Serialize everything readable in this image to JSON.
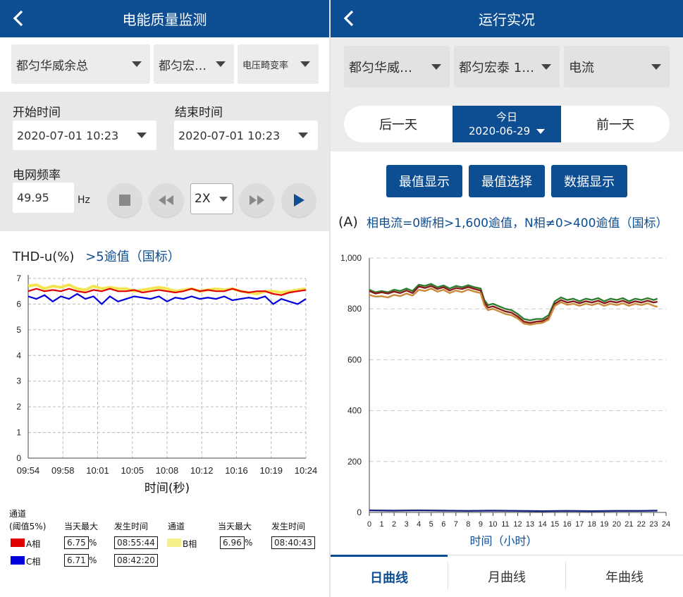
{
  "left": {
    "title": "电能质量监测",
    "selects": [
      "都匀华威余总",
      "都匀宏…",
      "电压畸变率"
    ],
    "start_label": "开始时间",
    "end_label": "结束时间",
    "start_value": "2020-07-01 10:23",
    "end_value": "2020-07-01 10:23",
    "freq_label": "电网频率",
    "freq_value": "49.95",
    "freq_unit": "Hz",
    "speed": "2X",
    "chart_title": "THD-u(%)",
    "chart_threshold": ">5逾值（国标）",
    "legend": {
      "channel_header": "通道",
      "threshold_header": "(阈值5%)",
      "max_header": "当天最大",
      "time_header": "发生时间",
      "channel_header2": "通道",
      "max_header2": "当天最大",
      "time_header2": "发生时间",
      "a": {
        "label": "A相",
        "max": "6.75",
        "unit": "%",
        "time": "08:55:44"
      },
      "b": {
        "label": "B相",
        "max": "6.96",
        "unit": "%",
        "time": "08:40:43"
      },
      "c": {
        "label": "C相",
        "max": "6.71",
        "unit": "%",
        "time": "08:42:20"
      }
    },
    "chart_data": {
      "type": "line",
      "xlabel": "时间(秒)",
      "x_ticks": [
        "09:54",
        "09:58",
        "10:01",
        "10:05",
        "10:08",
        "10:12",
        "10:16",
        "10:19",
        "10:24"
      ],
      "y_ticks": [
        "0",
        "1",
        "2",
        "3",
        "4",
        "5",
        "6",
        "7"
      ],
      "ylim": [
        0,
        7
      ],
      "series": [
        {
          "name": "A相",
          "color": "#e00000",
          "values": [
            6.5,
            6.6,
            6.5,
            6.55,
            6.5,
            6.6,
            6.5,
            6.45,
            6.55,
            6.5,
            6.6,
            6.5,
            6.5,
            6.55,
            6.45,
            6.5,
            6.55,
            6.5,
            6.45,
            6.5,
            6.6,
            6.5,
            6.55,
            6.5,
            6.5,
            6.6,
            6.5,
            6.45,
            6.5,
            6.5,
            6.4,
            6.35,
            6.45,
            6.5,
            6.55
          ]
        },
        {
          "name": "B相",
          "color": "#f4e450",
          "values": [
            6.7,
            6.75,
            6.6,
            6.7,
            6.65,
            6.75,
            6.6,
            6.55,
            6.7,
            6.6,
            6.65,
            6.6,
            6.6,
            6.5,
            6.55,
            6.6,
            6.65,
            6.6,
            6.5,
            6.55,
            6.6,
            6.5,
            6.55,
            6.6,
            6.55,
            6.6,
            6.5,
            6.45,
            6.4,
            6.5,
            6.5,
            6.45,
            6.5,
            6.55,
            6.6
          ]
        },
        {
          "name": "C相",
          "color": "#0000dd",
          "values": [
            6.3,
            6.2,
            6.35,
            6.1,
            6.3,
            6.2,
            6.4,
            6.2,
            6.3,
            6.0,
            6.3,
            6.1,
            6.2,
            6.3,
            6.25,
            6.2,
            6.3,
            6.1,
            6.25,
            6.2,
            6.3,
            6.2,
            6.25,
            6.2,
            6.3,
            6.15,
            6.2,
            6.25,
            6.2,
            6.3,
            6.0,
            6.2,
            6.1,
            6.0,
            6.2
          ]
        }
      ]
    }
  },
  "right": {
    "title": "运行实况",
    "selects": [
      "都匀华威…",
      "都匀宏泰 1…",
      "电流"
    ],
    "date_prev": "后一天",
    "date_today": "今日",
    "date_value": "2020-06-29",
    "date_next": "前一天",
    "buttons": [
      "最值显示",
      "最值选择",
      "数据显示"
    ],
    "unit": "(A)",
    "note": "相电流=0断相>1,600逾值，N相≠0>400逾值（国标）",
    "tabs": [
      "日曲线",
      "月曲线",
      "年曲线"
    ],
    "chart_data": {
      "type": "line",
      "xlabel": "时间（小时）",
      "x_ticks": [
        "0",
        "1",
        "2",
        "3",
        "4",
        "5",
        "6",
        "7",
        "8",
        "9",
        "10",
        "11",
        "12",
        "13",
        "14",
        "15",
        "16",
        "17",
        "18",
        "19",
        "20",
        "21",
        "22",
        "23",
        "24"
      ],
      "y_ticks": [
        "0",
        "200",
        "400",
        "600",
        "800",
        "1,000"
      ],
      "xlim": [
        0,
        24
      ],
      "ylim": [
        0,
        1000
      ],
      "series": [
        {
          "color": "#2e7d2e",
          "x": [
            0,
            0.5,
            1,
            1.5,
            2,
            2.5,
            3,
            3.5,
            4,
            4.5,
            5,
            5.5,
            6,
            6.5,
            7,
            7.5,
            8,
            8.5,
            9,
            9.3,
            9.6,
            10,
            10.5,
            11,
            11.5,
            12,
            12.5,
            13,
            13.5,
            14,
            14.5,
            15,
            15.5,
            16,
            16.5,
            17,
            17.5,
            18,
            18.5,
            19,
            19.5,
            20,
            20.5,
            21,
            21.5,
            22,
            22.5,
            23,
            23.3
          ],
          "y": [
            875,
            865,
            870,
            865,
            875,
            870,
            880,
            870,
            895,
            890,
            898,
            885,
            892,
            880,
            890,
            885,
            893,
            885,
            880,
            835,
            815,
            820,
            810,
            800,
            795,
            780,
            760,
            755,
            760,
            760,
            775,
            830,
            845,
            835,
            840,
            830,
            840,
            835,
            842,
            830,
            840,
            835,
            842,
            830,
            840,
            835,
            842,
            835,
            840
          ]
        },
        {
          "color": "#8b1a1a",
          "x": [
            0,
            0.5,
            1,
            1.5,
            2,
            2.5,
            3,
            3.5,
            4,
            4.5,
            5,
            5.5,
            6,
            6.5,
            7,
            7.5,
            8,
            8.5,
            9,
            9.3,
            9.6,
            10,
            10.5,
            11,
            11.5,
            12,
            12.5,
            13,
            13.5,
            14,
            14.5,
            15,
            15.5,
            16,
            16.5,
            17,
            17.5,
            18,
            18.5,
            19,
            19.5,
            20,
            20.5,
            21,
            21.5,
            22,
            22.5,
            23,
            23.3
          ],
          "y": [
            870,
            860,
            865,
            860,
            868,
            862,
            872,
            862,
            888,
            882,
            890,
            878,
            885,
            872,
            882,
            878,
            886,
            878,
            872,
            825,
            805,
            810,
            800,
            790,
            785,
            770,
            750,
            745,
            750,
            752,
            765,
            820,
            835,
            825,
            830,
            822,
            830,
            825,
            832,
            822,
            830,
            825,
            832,
            822,
            830,
            825,
            832,
            825,
            828
          ]
        },
        {
          "color": "#c98a3a",
          "x": [
            0,
            0.5,
            1,
            1.5,
            2,
            2.5,
            3,
            3.5,
            4,
            4.5,
            5,
            5.5,
            6,
            6.5,
            7,
            7.5,
            8,
            8.5,
            9,
            9.3,
            9.6,
            10,
            10.5,
            11,
            11.5,
            12,
            12.5,
            13,
            13.5,
            14,
            14.5,
            15,
            15.5,
            16,
            16.5,
            17,
            17.5,
            18,
            18.5,
            19,
            19.5,
            20,
            20.5,
            21,
            21.5,
            22,
            22.5,
            23,
            23.3
          ],
          "y": [
            855,
            848,
            850,
            845,
            855,
            850,
            860,
            852,
            875,
            870,
            880,
            868,
            875,
            862,
            872,
            866,
            876,
            868,
            862,
            815,
            795,
            800,
            790,
            780,
            775,
            762,
            742,
            738,
            742,
            745,
            758,
            812,
            826,
            816,
            820,
            812,
            820,
            815,
            822,
            812,
            820,
            815,
            822,
            812,
            820,
            815,
            822,
            812,
            808
          ]
        },
        {
          "color": "#1a237e",
          "x": [
            0,
            2,
            4,
            6,
            8,
            10,
            12,
            14,
            16,
            18,
            20,
            22,
            23.3
          ],
          "y": [
            8,
            7,
            8,
            7,
            6,
            7,
            6,
            5,
            6,
            5,
            6,
            6,
            7
          ]
        }
      ]
    }
  }
}
